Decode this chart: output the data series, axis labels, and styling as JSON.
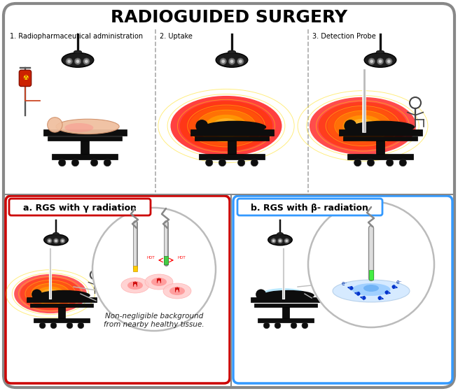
{
  "title": "RADIOGUIDED SURGERY",
  "title_fontsize": 18,
  "title_weight": "bold",
  "bg_color": "#f5f5f5",
  "border_color": "#888888",
  "top_labels": [
    "1. Radiopharmaceutical administration",
    "2. Uptake",
    "3. Detection Probe"
  ],
  "bottom_left_label": "a. RGS with γ radiation",
  "bottom_right_label": "b. RGS with β- radiation",
  "bottom_left_border": "#cc0000",
  "bottom_right_border": "#3399ff",
  "annotation_text": "Non-negligible background\nfrom nearby healthy tissue.",
  "divider_color": "#aaaaaa",
  "radiation_colors": [
    "#ff0000",
    "#ff3300",
    "#ff6600",
    "#ff9900",
    "#ffcc00",
    "#ffee66",
    "#ffffbb",
    "#ffffff"
  ],
  "figure_width": 6.54,
  "figure_height": 5.59
}
